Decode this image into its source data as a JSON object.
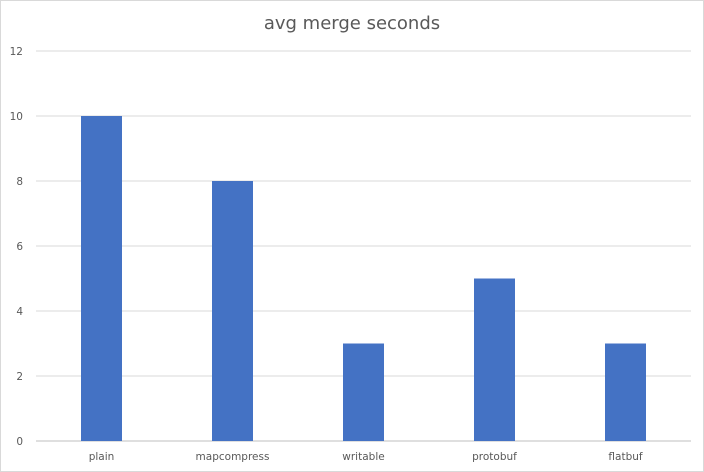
{
  "chart_data": {
    "type": "bar",
    "title": "avg merge seconds",
    "xlabel": "",
    "ylabel": "",
    "categories": [
      "plain",
      "mapcompress",
      "writable",
      "protobuf",
      "flatbuf"
    ],
    "values": [
      10,
      8,
      3,
      5,
      3
    ],
    "ylim": [
      0,
      12
    ],
    "yticks": [
      0,
      2,
      4,
      6,
      8,
      10,
      12
    ],
    "grid": true,
    "legend": "none",
    "colors": {
      "bar": "#4472c4",
      "grid": "#d9d9d9",
      "axis": "#bfbfbf",
      "text": "#595959"
    }
  }
}
